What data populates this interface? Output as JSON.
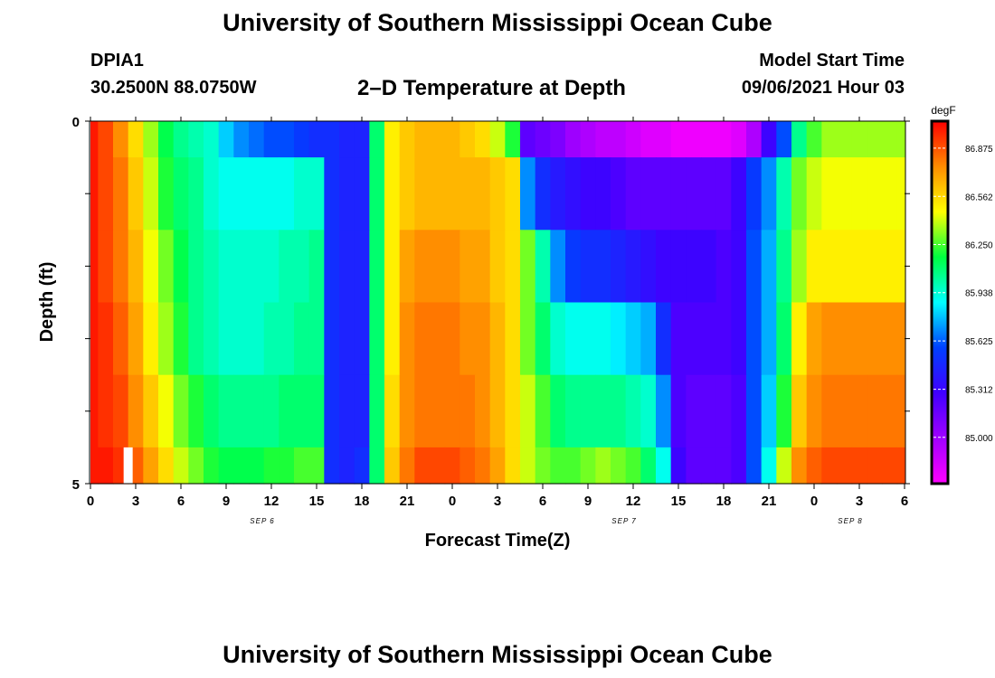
{
  "header": {
    "main_title": "University of Southern Mississippi Ocean Cube",
    "station": "DPIA1",
    "coords": "30.2500N  88.0750W",
    "plot_title": "2–D Temperature at Depth",
    "model_start_label": "Model Start Time",
    "model_start_value": "09/06/2021 Hour 03"
  },
  "footer": {
    "main_title": "University of Southern Mississippi Ocean Cube"
  },
  "chart_data": {
    "type": "heatmap",
    "xlabel": "Forecast Time(Z)",
    "ylabel": "Depth (ft)",
    "ylim": [
      0,
      5
    ],
    "y_tick_labels": [
      "0",
      "5"
    ],
    "x_tick_labels": [
      "0",
      "3",
      "6",
      "9",
      "12",
      "15",
      "18",
      "21",
      "0",
      "3",
      "6",
      "9",
      "12",
      "15",
      "18",
      "21",
      "0",
      "3",
      "6"
    ],
    "date_labels": [
      {
        "label": "SEP 6",
        "hour": 12
      },
      {
        "label": "SEP 7",
        "hour": 36
      },
      {
        "label": "SEP 8",
        "hour": 51
      }
    ],
    "colorbar": {
      "unit": "degF",
      "tick_labels": [
        "86.875",
        "86.562",
        "86.250",
        "85.938",
        "85.625",
        "85.312",
        "85.000"
      ],
      "min": 84.7,
      "max": 87.05
    },
    "x_hours": [
      0,
      1,
      2,
      3,
      4,
      5,
      6,
      7,
      8,
      9,
      10,
      11,
      12,
      13,
      14,
      15,
      16,
      17,
      18,
      19,
      20,
      21,
      22,
      23,
      24,
      25,
      26,
      27,
      28,
      29,
      30,
      31,
      32,
      33,
      34,
      35,
      36,
      37,
      38,
      39,
      40,
      41,
      42,
      43,
      44,
      45,
      46,
      47,
      48,
      49,
      50,
      51,
      52,
      53,
      54
    ],
    "depth_layers": [
      {
        "depth_range": [
          0.0,
          0.5
        ],
        "values": [
          87.0,
          86.9,
          86.75,
          86.55,
          86.35,
          86.15,
          86.05,
          86.0,
          85.95,
          85.8,
          85.7,
          85.65,
          85.6,
          85.6,
          85.55,
          85.5,
          85.5,
          85.45,
          85.45,
          86.1,
          86.5,
          86.6,
          86.65,
          86.65,
          86.65,
          86.6,
          86.55,
          86.4,
          86.2,
          85.2,
          85.15,
          85.1,
          85.0,
          84.95,
          84.9,
          84.9,
          84.85,
          84.8,
          84.8,
          84.75,
          84.75,
          84.75,
          84.75,
          84.8,
          84.95,
          85.3,
          85.6,
          86.05,
          86.25,
          86.35,
          86.35,
          86.35,
          86.35,
          86.35,
          86.35
        ]
      },
      {
        "depth_range": [
          0.5,
          1.5
        ],
        "values": [
          87.0,
          86.9,
          86.8,
          86.6,
          86.4,
          86.2,
          86.1,
          86.05,
          85.95,
          85.9,
          85.9,
          85.9,
          85.9,
          85.9,
          85.95,
          85.95,
          85.5,
          85.45,
          85.45,
          86.1,
          86.5,
          86.6,
          86.65,
          86.65,
          86.65,
          86.65,
          86.65,
          86.6,
          86.55,
          85.7,
          85.5,
          85.4,
          85.35,
          85.3,
          85.3,
          85.25,
          85.2,
          85.2,
          85.2,
          85.2,
          85.2,
          85.2,
          85.2,
          85.3,
          85.55,
          85.7,
          86.0,
          86.3,
          86.4,
          86.45,
          86.45,
          86.45,
          86.45,
          86.45,
          86.45
        ]
      },
      {
        "depth_range": [
          1.5,
          2.5
        ],
        "values": [
          87.0,
          86.9,
          86.8,
          86.65,
          86.45,
          86.3,
          86.15,
          86.05,
          86.0,
          85.95,
          85.95,
          85.95,
          85.95,
          86.0,
          86.0,
          86.05,
          85.5,
          85.45,
          85.45,
          86.1,
          86.5,
          86.7,
          86.75,
          86.75,
          86.75,
          86.7,
          86.7,
          86.6,
          86.55,
          86.3,
          86.0,
          85.7,
          85.55,
          85.5,
          85.5,
          85.45,
          85.4,
          85.35,
          85.3,
          85.3,
          85.3,
          85.3,
          85.25,
          85.3,
          85.6,
          85.75,
          86.05,
          86.35,
          86.5,
          86.5,
          86.5,
          86.5,
          86.5,
          86.5,
          86.5
        ]
      },
      {
        "depth_range": [
          2.5,
          3.5
        ],
        "values": [
          87.0,
          86.95,
          86.85,
          86.7,
          86.5,
          86.35,
          86.2,
          86.05,
          86.0,
          85.95,
          85.95,
          85.95,
          86.0,
          86.0,
          86.05,
          86.05,
          85.5,
          85.45,
          85.45,
          86.1,
          86.5,
          86.75,
          86.8,
          86.8,
          86.8,
          86.75,
          86.75,
          86.65,
          86.55,
          86.3,
          86.1,
          85.95,
          85.9,
          85.9,
          85.9,
          85.85,
          85.8,
          85.75,
          85.5,
          85.25,
          85.25,
          85.25,
          85.25,
          85.3,
          85.6,
          85.75,
          86.1,
          86.5,
          86.7,
          86.75,
          86.75,
          86.75,
          86.75,
          86.75,
          86.75
        ]
      },
      {
        "depth_range": [
          3.5,
          4.5
        ],
        "values": [
          87.0,
          86.95,
          86.9,
          86.75,
          86.6,
          86.45,
          86.3,
          86.2,
          86.1,
          86.05,
          86.05,
          86.05,
          86.05,
          86.1,
          86.1,
          86.1,
          85.5,
          85.45,
          85.45,
          86.1,
          86.55,
          86.75,
          86.8,
          86.8,
          86.8,
          86.8,
          86.75,
          86.65,
          86.55,
          86.4,
          86.25,
          86.1,
          86.05,
          86.05,
          86.05,
          86.05,
          86.0,
          85.95,
          85.7,
          85.25,
          85.2,
          85.2,
          85.2,
          85.25,
          85.6,
          85.8,
          86.2,
          86.6,
          86.75,
          86.8,
          86.8,
          86.8,
          86.8,
          86.8,
          86.8
        ]
      },
      {
        "depth_range": [
          4.5,
          5.0
        ],
        "values": [
          87.0,
          87.0,
          86.95,
          86.85,
          86.7,
          86.55,
          86.4,
          86.3,
          86.2,
          86.15,
          86.15,
          86.15,
          86.2,
          86.2,
          86.25,
          86.25,
          85.5,
          85.45,
          85.5,
          86.1,
          86.6,
          86.8,
          86.9,
          86.9,
          86.9,
          86.85,
          86.8,
          86.7,
          86.55,
          86.4,
          86.3,
          86.25,
          86.25,
          86.3,
          86.35,
          86.3,
          86.25,
          86.1,
          85.9,
          85.3,
          85.2,
          85.2,
          85.2,
          85.25,
          85.6,
          85.9,
          86.4,
          86.75,
          86.85,
          86.9,
          86.9,
          86.9,
          86.9,
          86.9,
          86.9
        ]
      }
    ],
    "missing_cells": [
      {
        "depth_range": [
          4.5,
          5.0
        ],
        "hour_range": [
          2.2,
          2.8
        ]
      }
    ]
  }
}
